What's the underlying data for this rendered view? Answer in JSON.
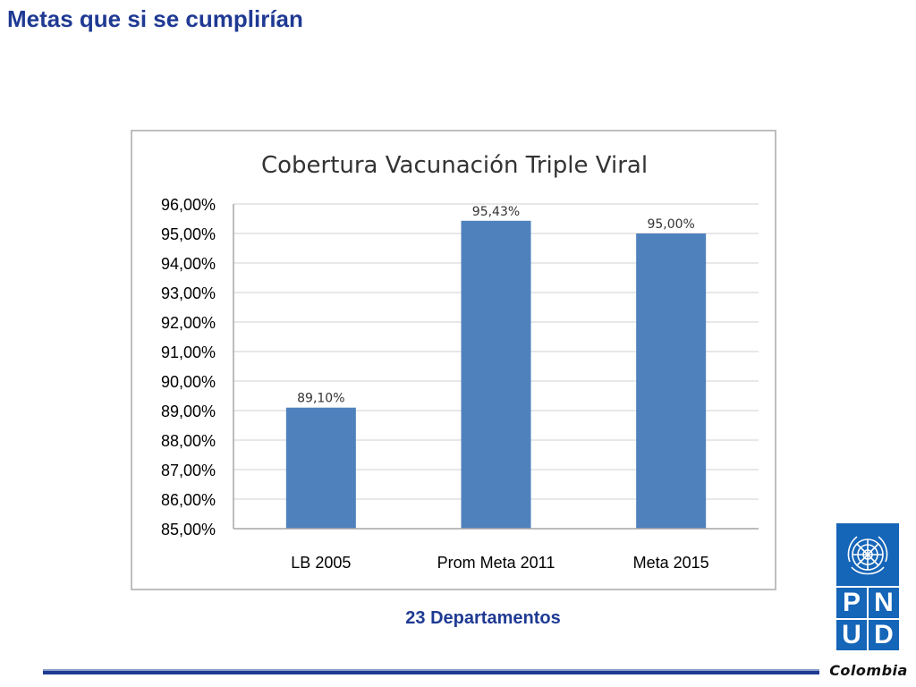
{
  "slide": {
    "title": "Metas que si se cumplirían",
    "subtitle": "23 Departamentos",
    "logo": {
      "letters": [
        "P",
        "N",
        "U",
        "D"
      ],
      "country": "Colombia",
      "brand_color": "#1565b8"
    },
    "text_color": "#1f3a93"
  },
  "chart_data": {
    "type": "bar",
    "title": "Cobertura Vacunación Triple Viral",
    "categories": [
      "LB 2005",
      "Prom Meta 2011",
      "Meta 2015"
    ],
    "values": [
      89.1,
      95.43,
      95.0
    ],
    "data_labels": [
      "89,10%",
      "95,43%",
      "95,00%"
    ],
    "ylim": [
      85,
      96
    ],
    "yticks": [
      85,
      86,
      87,
      88,
      89,
      90,
      91,
      92,
      93,
      94,
      95,
      96
    ],
    "ytick_labels": [
      "85,00%",
      "86,00%",
      "87,00%",
      "88,00%",
      "89,00%",
      "90,00%",
      "91,00%",
      "92,00%",
      "93,00%",
      "94,00%",
      "95,00%",
      "96,00%"
    ],
    "xlabel": "",
    "ylabel": "",
    "grid": true,
    "bar_color": "#4f81bd"
  }
}
